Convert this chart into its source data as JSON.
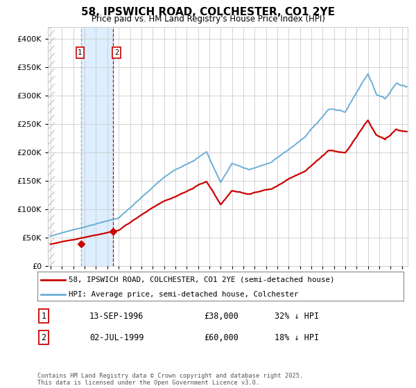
{
  "title": "58, IPSWICH ROAD, COLCHESTER, CO1 2YE",
  "subtitle": "Price paid vs. HM Land Registry's House Price Index (HPI)",
  "legend_line1": "58, IPSWICH ROAD, COLCHESTER, CO1 2YE (semi-detached house)",
  "legend_line2": "HPI: Average price, semi-detached house, Colchester",
  "transaction1_date": "13-SEP-1996",
  "transaction1_price": "£38,000",
  "transaction1_hpi": "32% ↓ HPI",
  "transaction2_date": "02-JUL-1999",
  "transaction2_price": "£60,000",
  "transaction2_hpi": "18% ↓ HPI",
  "footer": "Contains HM Land Registry data © Crown copyright and database right 2025.\nThis data is licensed under the Open Government Licence v3.0.",
  "hpi_color": "#6baed6",
  "price_color": "#cc0000",
  "marker_color": "#cc0000",
  "vline1_color": "#aaaaaa",
  "vline2_color": "#cc0000",
  "highlight_color": "#ddeeff",
  "hatch_color": "#dddddd",
  "grid_color": "#cccccc",
  "background_color": "#ffffff",
  "ylim": [
    0,
    420000
  ],
  "xlim_start": 1993.75,
  "xlim_end": 2025.5,
  "transaction1_x": 1996.7,
  "transaction1_y": 38000,
  "transaction2_x": 1999.5,
  "transaction2_y": 60000
}
